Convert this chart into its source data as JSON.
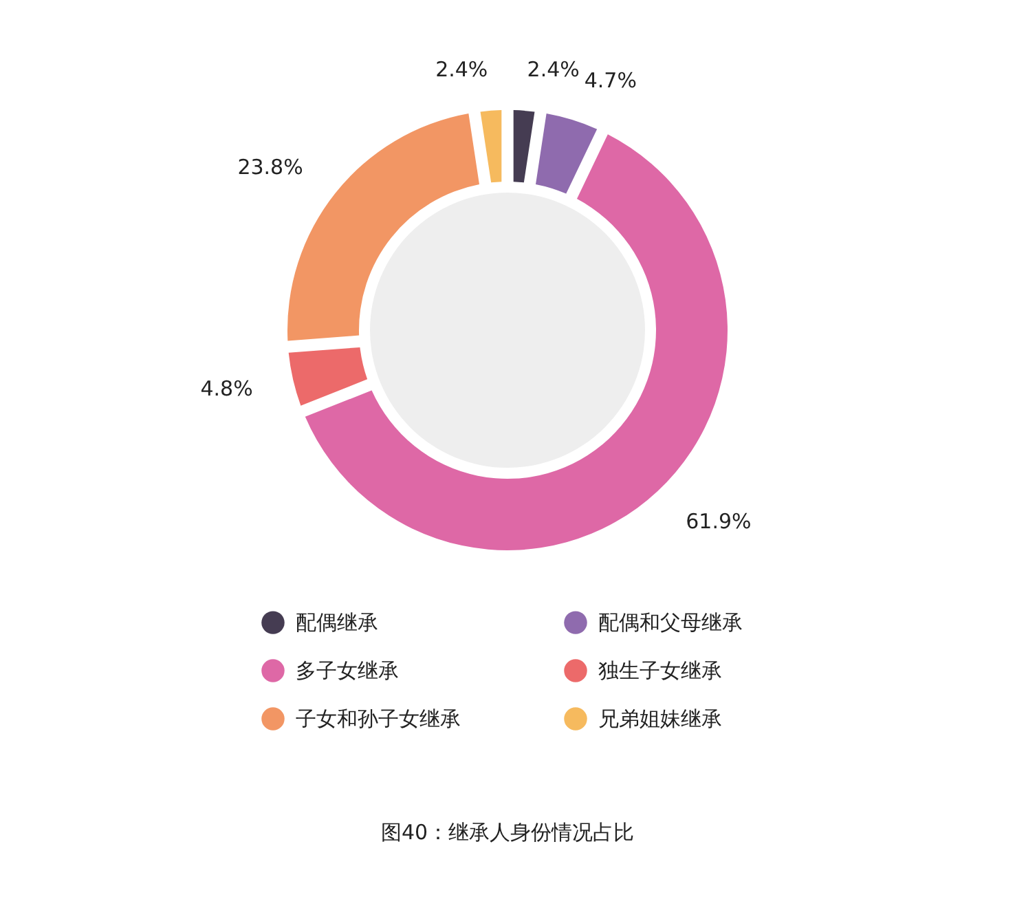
{
  "chart_data": {
    "type": "donut",
    "title": "图40：继承人身份情况占比",
    "categories": [
      "配偶继承",
      "配偶和父母继承",
      "多子女继承",
      "独生子女继承",
      "子女和孙子女继承",
      "兄弟姐妹继承"
    ],
    "values": [
      2.4,
      4.7,
      61.9,
      4.8,
      23.8,
      2.4
    ],
    "colors": [
      "#453c52",
      "#8f6bae",
      "#de68a6",
      "#ec6a6a",
      "#f29664",
      "#f6ba5e"
    ],
    "value_labels": [
      "2.4%",
      "4.7%",
      "61.9%",
      "4.8%",
      "23.8%",
      "2.4%"
    ],
    "legend": "bottom"
  }
}
